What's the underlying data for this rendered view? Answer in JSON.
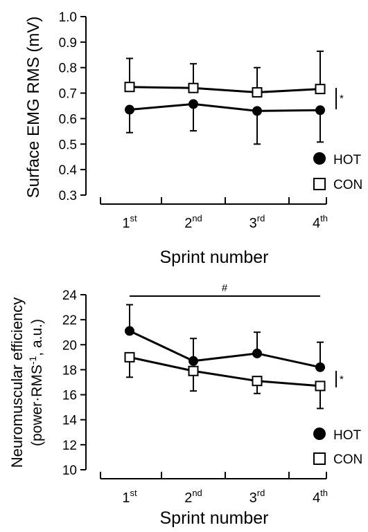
{
  "chart_data": [
    {
      "type": "line",
      "ylabel": "Surface EMG RMS (mV)",
      "xlabel": "Sprint number",
      "ylim": [
        0.3,
        1.0
      ],
      "yticks": [
        "1.0",
        "0.9",
        "0.8",
        "0.7",
        "0.6",
        "0.5",
        "0.4",
        "0.3"
      ],
      "categories": [
        {
          "base": "1",
          "sup": "st"
        },
        {
          "base": "2",
          "sup": "nd"
        },
        {
          "base": "3",
          "sup": "rd"
        },
        {
          "base": "4",
          "sup": "th"
        }
      ],
      "series": [
        {
          "name": "HOT",
          "marker": "filled-circle",
          "values": [
            0.635,
            0.657,
            0.63,
            0.633
          ],
          "err_lo": [
            0.09,
            0.105,
            0.13,
            0.125
          ],
          "err_hi": [
            0,
            0,
            0,
            0
          ]
        },
        {
          "name": "CON",
          "marker": "open-square",
          "values": [
            0.724,
            0.72,
            0.703,
            0.716
          ],
          "err_lo": [
            0,
            0,
            0,
            0
          ],
          "err_hi": [
            0.112,
            0.095,
            0.097,
            0.148
          ]
        }
      ],
      "significance": "*",
      "grid": false,
      "legend": "bottom-right"
    },
    {
      "type": "line",
      "ylabel_line1": "Neuromuscular efficiency",
      "ylabel_line2_pre": "(power·RMS",
      "ylabel_line2_sup": "-1",
      "ylabel_line2_post": ", a.u.)",
      "xlabel": "Sprint number",
      "ylim": [
        10,
        24
      ],
      "yticks": [
        "24",
        "22",
        "20",
        "18",
        "16",
        "14",
        "12",
        "10"
      ],
      "categories": [
        {
          "base": "1",
          "sup": "st"
        },
        {
          "base": "2",
          "sup": "nd"
        },
        {
          "base": "3",
          "sup": "rd"
        },
        {
          "base": "4",
          "sup": "th"
        }
      ],
      "series": [
        {
          "name": "HOT",
          "marker": "filled-circle",
          "values": [
            21.1,
            18.7,
            19.3,
            18.2
          ],
          "err_lo": [
            0,
            0,
            0,
            0
          ],
          "err_hi": [
            2.1,
            1.8,
            1.7,
            2.0
          ]
        },
        {
          "name": "CON",
          "marker": "open-square",
          "values": [
            19.0,
            17.9,
            17.1,
            16.7
          ],
          "err_lo": [
            1.6,
            1.6,
            1.0,
            1.8
          ],
          "err_hi": [
            0,
            0,
            0,
            0
          ]
        }
      ],
      "significance": "*",
      "bracket_label": "#",
      "grid": false,
      "legend": "bottom-right"
    }
  ]
}
